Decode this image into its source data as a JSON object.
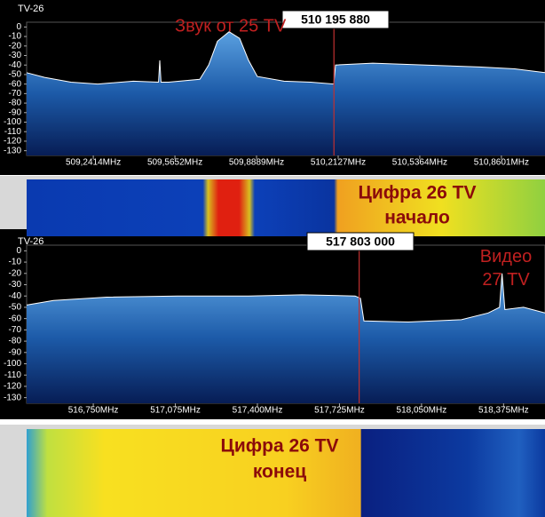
{
  "chart_data": [
    {
      "type": "line",
      "title": "TV-26",
      "color": "#ffffff",
      "x": [
        508.977,
        509.048,
        509.153,
        509.259,
        509.4,
        509.5,
        509.505,
        509.51,
        509.54,
        509.664,
        509.699,
        509.734,
        509.78,
        509.822,
        509.857,
        509.892,
        509.998,
        510.104,
        510.195,
        510.202,
        510.35,
        510.561,
        510.772,
        510.913,
        511.033
      ],
      "values": [
        -48,
        -53,
        -58,
        -60,
        -57,
        -58,
        -35,
        -58,
        -58,
        -55,
        -40,
        -15,
        -5,
        -12,
        -35,
        -52,
        -57,
        -58,
        -60,
        -40,
        -38,
        -40,
        -42,
        -44,
        -48
      ],
      "xlim": [
        508.977,
        511.033
      ],
      "ylim": [
        -135,
        5
      ],
      "xticks": [
        {
          "value": 509.2414,
          "label": "509,2414MHz"
        },
        {
          "value": 509.5652,
          "label": "509,5652MHz"
        },
        {
          "value": 509.8889,
          "label": "509,8889MHz"
        },
        {
          "value": 510.2127,
          "label": "510,2127MHz"
        },
        {
          "value": 510.5364,
          "label": "510,5364MHz"
        },
        {
          "value": 510.8601,
          "label": "510,8601MHz"
        }
      ],
      "yticks": [
        0,
        -10,
        -20,
        -30,
        -40,
        -50,
        -60,
        -70,
        -80,
        -90,
        -100,
        -110,
        -120,
        -130
      ],
      "marker": {
        "value": 510.19588,
        "label": "510 195 880",
        "color": "#c03030"
      },
      "annotation": "Звук от 25 TV",
      "waterfall_annotations": [
        "Цифра 26 TV",
        "начало"
      ]
    },
    {
      "type": "line",
      "title": "TV-26",
      "color": "#ffffff",
      "x": [
        516.486,
        516.592,
        516.803,
        517.084,
        517.365,
        517.576,
        517.787,
        517.808,
        517.822,
        517.997,
        518.208,
        518.314,
        518.359,
        518.369,
        518.38,
        518.454,
        518.539
      ],
      "values": [
        -48,
        -44,
        -41,
        -40,
        -40,
        -39,
        -40,
        -42,
        -62,
        -63,
        -61,
        -55,
        -50,
        -20,
        -52,
        -50,
        -55
      ],
      "xlim": [
        516.486,
        518.539
      ],
      "ylim": [
        -135,
        5
      ],
      "xticks": [
        {
          "value": 516.75,
          "label": "516,750MHz"
        },
        {
          "value": 517.075,
          "label": "517,075MHz"
        },
        {
          "value": 517.4,
          "label": "517,400MHz"
        },
        {
          "value": 517.725,
          "label": "517,725MHz"
        },
        {
          "value": 518.05,
          "label": "518,050MHz"
        },
        {
          "value": 518.375,
          "label": "518,375MHz"
        }
      ],
      "yticks": [
        0,
        -10,
        -20,
        -30,
        -40,
        -50,
        -60,
        -70,
        -80,
        -90,
        -100,
        -110,
        -120,
        -130
      ],
      "marker": {
        "value": 517.803,
        "label": "517 803 000",
        "color": "#c03030"
      },
      "annotation": "Видео 27 TV",
      "waterfall_annotations": [
        "Цифра 26 TV",
        "конец"
      ]
    }
  ]
}
